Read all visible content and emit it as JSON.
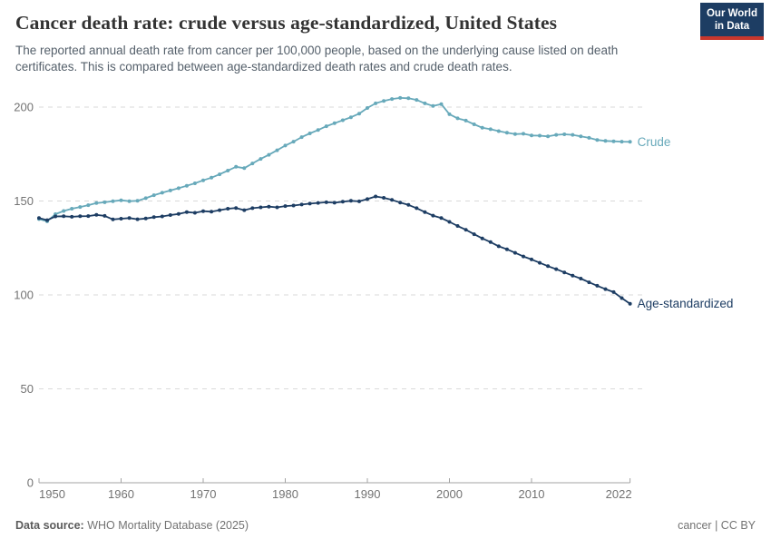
{
  "header": {
    "title": "Cancer death rate: crude versus age-standardized, United States",
    "subtitle": "The reported annual death rate from cancer per 100,000 people, based on the underlying cause listed on death certificates. This is compared between age-standardized death rates and crude death rates.",
    "logo": {
      "line1": "Our World",
      "line2": "in Data"
    }
  },
  "chart_data": {
    "type": "line",
    "title": "Cancer death rate: crude versus age-standardized, United States",
    "xlabel": "",
    "ylabel": "",
    "x_ticks": [
      1950,
      1960,
      1970,
      1980,
      1990,
      2000,
      2010,
      2022
    ],
    "y_ticks": [
      0,
      50,
      100,
      150,
      200
    ],
    "xlim": [
      1950,
      2022
    ],
    "ylim": [
      0,
      200
    ],
    "grid": true,
    "legend_position": "end-of-line",
    "x": [
      1950,
      1951,
      1952,
      1953,
      1954,
      1955,
      1956,
      1957,
      1958,
      1959,
      1960,
      1961,
      1962,
      1963,
      1964,
      1965,
      1966,
      1967,
      1968,
      1969,
      1970,
      1971,
      1972,
      1973,
      1974,
      1975,
      1976,
      1977,
      1978,
      1979,
      1980,
      1981,
      1982,
      1983,
      1984,
      1985,
      1986,
      1987,
      1988,
      1989,
      1990,
      1991,
      1992,
      1993,
      1994,
      1995,
      1996,
      1997,
      1998,
      1999,
      2000,
      2001,
      2002,
      2003,
      2004,
      2005,
      2006,
      2007,
      2008,
      2009,
      2010,
      2011,
      2012,
      2013,
      2014,
      2015,
      2016,
      2017,
      2018,
      2019,
      2020,
      2021,
      2022
    ],
    "series": [
      {
        "name": "Crude",
        "color": "#67a9ba",
        "values": [
          140.4,
          139.2,
          143.0,
          144.7,
          145.9,
          146.8,
          147.8,
          148.9,
          149.3,
          149.9,
          150.4,
          149.9,
          150.1,
          151.5,
          153.1,
          154.4,
          155.6,
          156.8,
          158.1,
          159.4,
          161.0,
          162.4,
          164.2,
          166.2,
          168.2,
          167.5,
          170.0,
          172.4,
          174.6,
          177.0,
          179.5,
          181.6,
          184.0,
          186.0,
          187.8,
          189.8,
          191.4,
          193.0,
          194.6,
          196.5,
          199.5,
          202.0,
          203.3,
          204.3,
          204.9,
          204.7,
          203.8,
          202.0,
          200.6,
          201.6,
          196.2,
          194.0,
          192.8,
          190.8,
          189.0,
          188.2,
          187.2,
          186.4,
          185.6,
          185.8,
          184.9,
          184.8,
          184.4,
          185.2,
          185.5,
          185.2,
          184.4,
          183.6,
          182.5,
          182.0,
          181.8,
          181.6,
          181.5
        ]
      },
      {
        "name": "Age-standardized",
        "color": "#1d3d63",
        "values": [
          140.9,
          139.8,
          141.8,
          141.9,
          141.6,
          141.9,
          142.0,
          142.6,
          142.1,
          140.2,
          140.6,
          140.9,
          140.3,
          140.7,
          141.4,
          141.8,
          142.5,
          143.1,
          144.1,
          143.7,
          144.6,
          144.3,
          145.1,
          145.9,
          146.3,
          145.1,
          146.2,
          146.6,
          147.0,
          146.6,
          147.3,
          147.6,
          148.1,
          148.6,
          149.0,
          149.3,
          149.1,
          149.6,
          150.1,
          149.8,
          151.0,
          152.4,
          151.7,
          150.6,
          149.2,
          147.9,
          146.2,
          144.1,
          142.2,
          140.9,
          138.9,
          136.7,
          134.7,
          132.3,
          130.1,
          128.1,
          125.9,
          124.3,
          122.4,
          120.5,
          118.9,
          117.1,
          115.3,
          113.7,
          112.0,
          110.3,
          108.7,
          106.7,
          104.9,
          103.1,
          101.5,
          98.3,
          95.3
        ]
      }
    ],
    "colors": {
      "grid": "#dadada",
      "axis": "#a3a3a3",
      "tick_text": "#737373"
    }
  },
  "footer": {
    "source_label": "Data source:",
    "source_value": " WHO Mortality Database (2025)",
    "license": "cancer | CC BY"
  }
}
